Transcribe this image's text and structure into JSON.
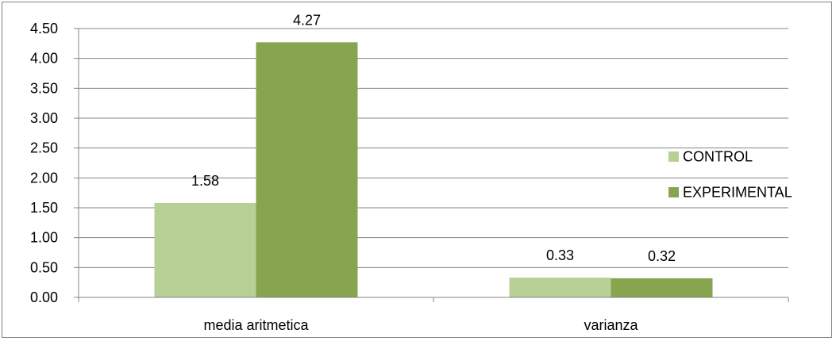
{
  "chart_data": {
    "type": "bar",
    "categories": [
      "media aritmetica",
      "varianza"
    ],
    "series": [
      {
        "name": "CONTROL",
        "values": [
          1.58,
          0.33
        ],
        "labels": [
          "1.58",
          "0.33"
        ],
        "color": "#b8cf95"
      },
      {
        "name": "EXPERIMENTAL",
        "values": [
          4.27,
          0.32
        ],
        "labels": [
          "4.27",
          "0.32"
        ],
        "color": "#87a54f"
      }
    ],
    "ylim": [
      0,
      4.5
    ],
    "yticks": [
      "0.00",
      "0.50",
      "1.00",
      "1.50",
      "2.00",
      "2.50",
      "3.00",
      "3.50",
      "4.00",
      "4.50"
    ],
    "grid": true,
    "legend_position": "right",
    "title": "",
    "xlabel": "",
    "ylabel": ""
  }
}
